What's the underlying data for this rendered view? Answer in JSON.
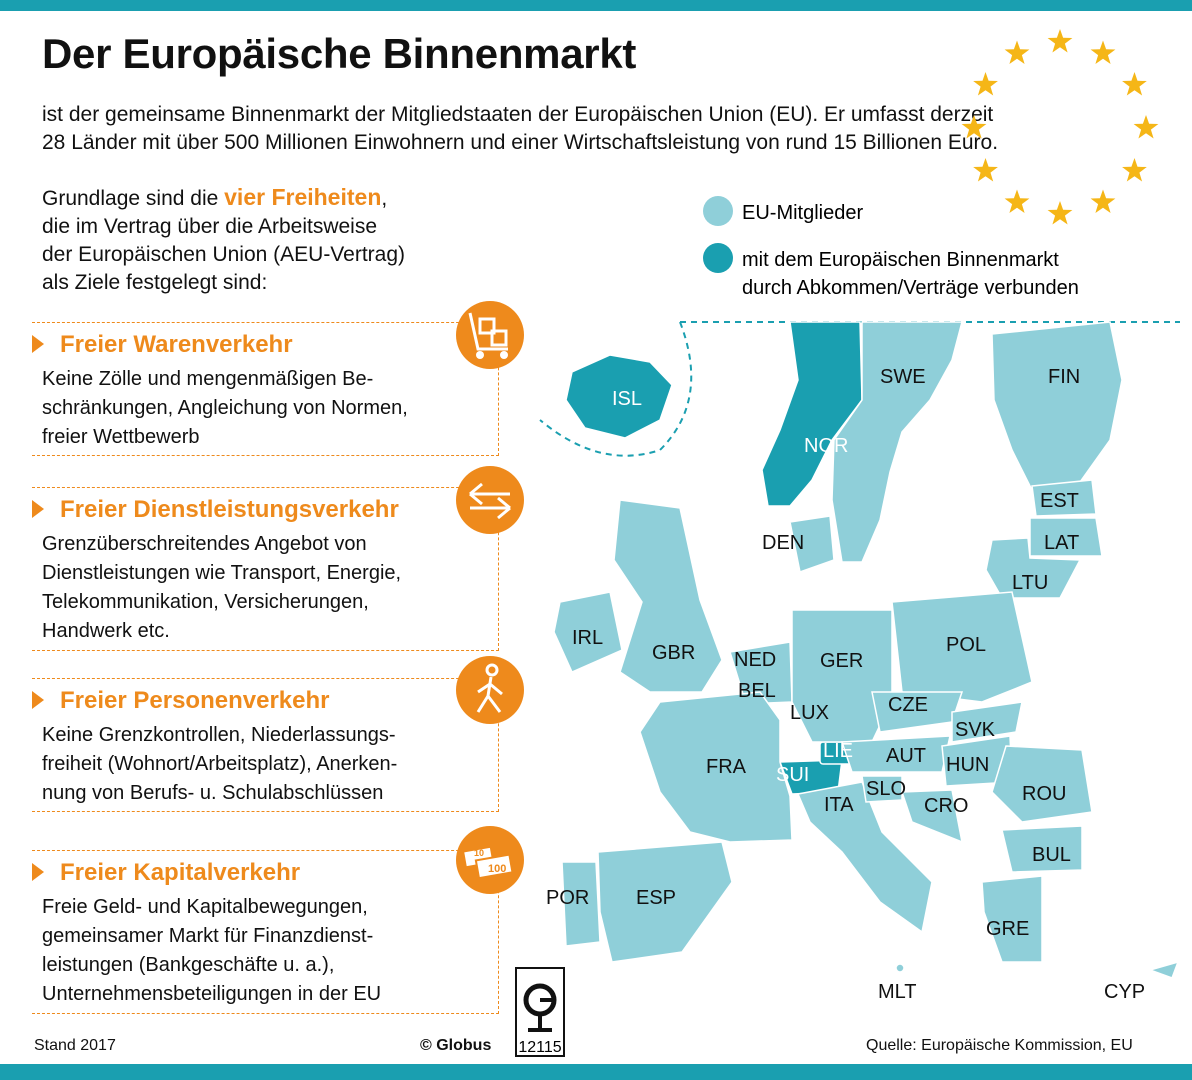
{
  "header": {
    "title": "Der Europäische Binnenmarkt",
    "intro": [
      "ist der gemeinsame Binnenmarkt der Mitgliedstaaten der Europäischen Union (EU). Er umfasst derzeit",
      "28 Länder mit über 500 Millionen Einwohnern und einer Wirtschaftsleistung von rund 15 Billionen Euro."
    ]
  },
  "basis": {
    "first_line": {
      "before": "Grundlage sind die",
      "highlight": "vier Freiheiten",
      "after": ","
    },
    "lines": [
      "die im Vertrag über die Arbeitsweise",
      "der Europäischen Union (AEU-Vertrag)",
      "als Ziele festgelegt sind:"
    ]
  },
  "freedoms": [
    {
      "title": "Freier Warenverkehr",
      "lines": [
        "Keine Zölle und mengenmäßigen Be-",
        "schränkungen, Angleichung von Normen,",
        "freier Wettbewerb"
      ]
    },
    {
      "title": "Freier Dienstleistungsverkehr",
      "lines": [
        "Grenzüberschreitendes Angebot von",
        "Dienstleistungen wie Transport, Energie,",
        "Telekommunikation, Versicherungen,",
        "Handwerk etc."
      ]
    },
    {
      "title": "Freier Personenverkehr",
      "lines": [
        "Keine Grenzkontrollen, Niederlassungs-",
        "freiheit (Wohnort/Arbeitsplatz), Anerken-",
        "nung von Berufs- u. Schulabschlüssen"
      ]
    },
    {
      "title": "Freier Kapitalverkehr",
      "lines": [
        "Freie Geld- und Kapitalbewegungen,",
        "gemeinsamer Markt für Finanzdienst-",
        "leistungen (Bankgeschäfte u. a.),",
        "Unternehmensbeteiligungen in der EU"
      ]
    }
  ],
  "icon_texts": {
    "small_note": "10",
    "large_note": "100"
  },
  "legend": [
    {
      "lines": [
        "EU-Mitglieder"
      ]
    },
    {
      "lines": [
        "mit dem Europäischen Binnenmarkt",
        "durch Abkommen/Verträge verbunden"
      ]
    }
  ],
  "map": {
    "labels": [
      "ISL",
      "NOR",
      "SWE",
      "FIN",
      "EST",
      "LAT",
      "LTU",
      "DEN",
      "IRL",
      "GBR",
      "NED",
      "BEL",
      "GER",
      "POL",
      "LUX",
      "CZE",
      "SVK",
      "LIE",
      "AUT",
      "HUN",
      "FRA",
      "SUI",
      "SLO",
      "ROU",
      "ITA",
      "CRO",
      "BUL",
      "POR",
      "ESP",
      "GRE",
      "MLT",
      "CYP"
    ]
  },
  "footer": {
    "date": "Stand 2017",
    "brand": "© Globus",
    "number": "12115",
    "source": "Quelle: Europäische Kommission, EU"
  }
}
